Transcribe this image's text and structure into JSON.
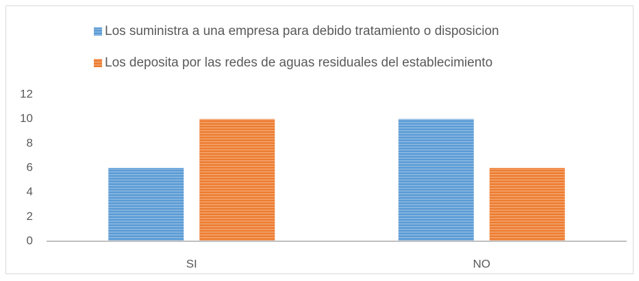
{
  "chart_data": {
    "type": "bar",
    "categories": [
      "SI",
      "NO"
    ],
    "series": [
      {
        "name": "Los suministra a una empresa para debido tratamiento o disposicion",
        "color": "#5b9bd5",
        "values": [
          6,
          10
        ]
      },
      {
        "name": "Los deposita por las redes de aguas residuales del establecimiento",
        "color": "#ed7d31",
        "values": [
          10,
          6
        ]
      }
    ],
    "ylim": [
      0,
      12
    ],
    "yticks": [
      0,
      2,
      4,
      6,
      8,
      10,
      12
    ],
    "grid": false,
    "legend": "top"
  }
}
